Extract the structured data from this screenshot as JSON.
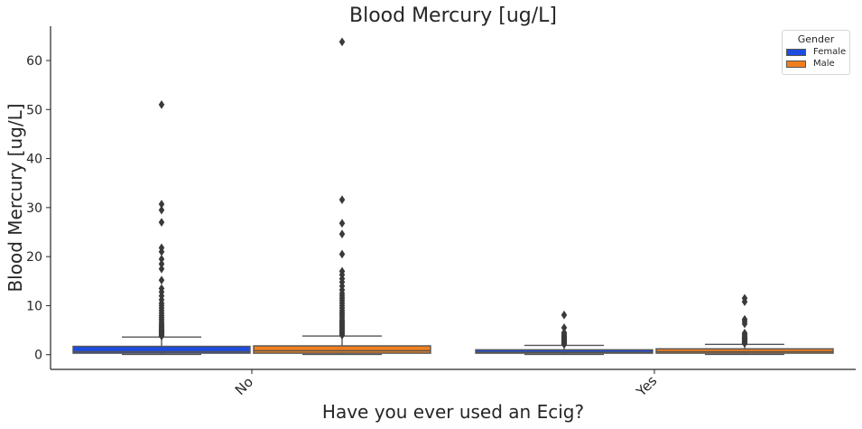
{
  "chart_data": {
    "type": "box",
    "title": "Blood Mercury [ug/L]",
    "xlabel": "Have you ever used an Ecig?",
    "ylabel": "Blood Mercury [ug/L]",
    "categories": [
      "No",
      "Yes"
    ],
    "ylim": [
      -3,
      67
    ],
    "yticks": [
      0,
      10,
      20,
      30,
      40,
      50,
      60
    ],
    "legend": {
      "title": "Gender",
      "placement": "top-right"
    },
    "series": [
      {
        "name": "Female",
        "color": "#1f4ce0",
        "boxes": [
          {
            "category": "No",
            "q1": 0.3,
            "median": 0.6,
            "q3": 1.7,
            "whisker_low": 0.05,
            "whisker_high": 3.6,
            "outliers": [
              3.8,
              4.0,
              4.2,
              4.4,
              4.6,
              4.8,
              5.0,
              5.2,
              5.5,
              5.8,
              6.1,
              6.4,
              6.8,
              7.2,
              7.6,
              8.0,
              8.5,
              9.0,
              9.5,
              10.0,
              10.5,
              11.2,
              12.0,
              12.8,
              13.5,
              15.2,
              17.5,
              18.5,
              19.5,
              21.0,
              21.8,
              27.0,
              29.5,
              30.7,
              51.0
            ]
          },
          {
            "category": "Yes",
            "q1": 0.3,
            "median": 0.5,
            "q3": 1.0,
            "whisker_low": 0.05,
            "whisker_high": 1.9,
            "outliers": [
              2.1,
              2.3,
              2.5,
              2.7,
              2.9,
              3.1,
              3.3,
              3.5,
              3.7,
              3.9,
              4.2,
              4.5,
              5.5,
              8.1
            ]
          }
        ]
      },
      {
        "name": "Male",
        "color": "#f07f1e",
        "boxes": [
          {
            "category": "No",
            "q1": 0.3,
            "median": 0.8,
            "q3": 1.8,
            "whisker_low": 0.05,
            "whisker_high": 3.8,
            "outliers": [
              4.0,
              4.3,
              4.6,
              4.9,
              5.2,
              5.5,
              5.8,
              6.1,
              6.4,
              6.7,
              7.0,
              7.4,
              7.8,
              8.2,
              8.6,
              9.0,
              9.5,
              10.0,
              10.5,
              11.0,
              11.5,
              12.0,
              12.5,
              13.2,
              14.0,
              14.8,
              15.5,
              16.3,
              17.0,
              20.5,
              24.6,
              26.8,
              31.6,
              63.8
            ]
          },
          {
            "category": "Yes",
            "q1": 0.3,
            "median": 0.6,
            "q3": 1.2,
            "whisker_low": 0.05,
            "whisker_high": 2.1,
            "outliers": [
              2.3,
              2.5,
              2.7,
              2.9,
              3.1,
              3.3,
              3.5,
              3.8,
              4.1,
              4.4,
              6.3,
              6.8,
              7.2,
              10.8,
              11.5
            ]
          }
        ]
      }
    ]
  }
}
